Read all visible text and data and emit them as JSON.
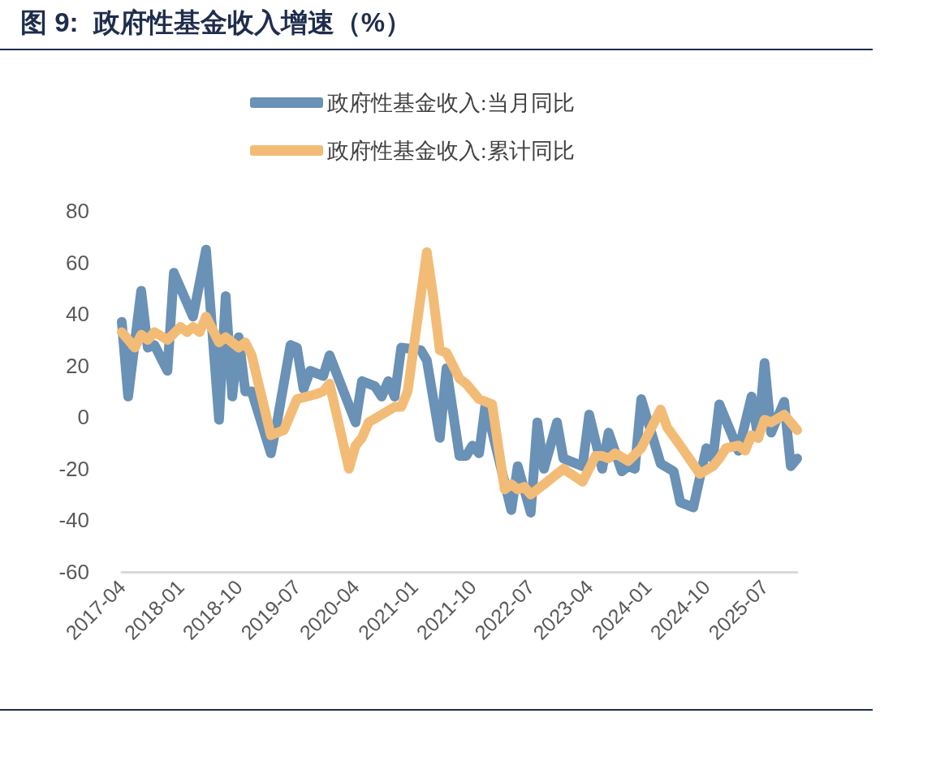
{
  "chart_data": {
    "type": "line",
    "title": "图 9:  政府性基金收入增速（%）",
    "xlim": [
      "2017-04",
      "2025-12"
    ],
    "xticks": [
      "2017-04",
      "2018-01",
      "2018-10",
      "2019-07",
      "2020-04",
      "2021-01",
      "2021-10",
      "2022-07",
      "2023-04",
      "2024-01",
      "2024-10",
      "2025-07"
    ],
    "ylim": [
      -60,
      80
    ],
    "yticks": [
      -60,
      -40,
      -20,
      0,
      20,
      40,
      60,
      80
    ],
    "grid": false,
    "legend": "top",
    "marker": "none",
    "line_style": "solid",
    "series": [
      {
        "name": "政府性基金收入:当月同比",
        "color": "#6a91b6",
        "x": [
          "2017-04",
          "2017-05",
          "2017-07",
          "2017-08",
          "2017-09",
          "2017-11",
          "2017-12",
          "2018-03",
          "2018-05",
          "2018-07",
          "2018-08",
          "2018-09",
          "2018-10",
          "2018-11",
          "2018-12",
          "2019-03",
          "2019-04",
          "2019-06",
          "2019-07",
          "2019-08",
          "2019-09",
          "2019-11",
          "2019-12",
          "2020-04",
          "2020-05",
          "2020-07",
          "2020-08",
          "2020-09",
          "2020-10",
          "2020-11",
          "2021-02",
          "2021-03",
          "2021-05",
          "2021-06",
          "2021-08",
          "2021-09",
          "2021-10",
          "2021-11",
          "2021-12",
          "2022-04",
          "2022-05",
          "2022-07",
          "2022-08",
          "2022-09",
          "2022-11",
          "2022-12",
          "2023-03",
          "2023-04",
          "2023-06",
          "2023-07",
          "2023-09",
          "2023-10",
          "2023-11",
          "2023-12",
          "2024-03",
          "2024-05",
          "2024-06",
          "2024-08",
          "2024-10",
          "2024-11",
          "2024-12",
          "2025-03",
          "2025-05",
          "2025-06",
          "2025-07",
          "2025-08",
          "2025-10",
          "2025-11",
          "2025-12"
        ],
        "values": [
          37,
          8,
          49,
          27,
          28,
          18,
          56,
          39,
          65,
          -1,
          47,
          8,
          31,
          10,
          10,
          -14,
          -1,
          28,
          27,
          11,
          18,
          16,
          24,
          -2,
          14,
          12,
          8,
          14,
          8,
          27,
          26,
          22,
          -8,
          19,
          -15,
          -15,
          -11,
          -14,
          5,
          -36,
          -19,
          -37,
          -2,
          -20,
          -2,
          -16,
          -19,
          1,
          -20,
          -6,
          -21,
          -19,
          -20,
          7,
          -18,
          -21,
          -33,
          -35,
          -12,
          -16,
          5,
          -13,
          8,
          -8,
          21,
          -6,
          6,
          -19,
          -16
        ]
      },
      {
        "name": "政府性基金收入:累计同比",
        "color": "#f2bc77",
        "x": [
          "2017-04",
          "2017-06",
          "2017-07",
          "2017-08",
          "2017-09",
          "2017-11",
          "2018-01",
          "2018-02",
          "2018-03",
          "2018-04",
          "2018-05",
          "2018-07",
          "2018-08",
          "2018-10",
          "2018-11",
          "2018-12",
          "2019-03",
          "2019-05",
          "2019-07",
          "2019-10",
          "2019-11",
          "2019-12",
          "2020-03",
          "2020-04",
          "2020-05",
          "2020-06",
          "2020-08",
          "2020-10",
          "2020-11",
          "2020-12",
          "2021-03",
          "2021-04",
          "2021-05",
          "2021-06",
          "2021-08",
          "2021-09",
          "2021-11",
          "2022-01",
          "2022-03",
          "2022-04",
          "2022-05",
          "2022-06",
          "2022-07",
          "2022-09",
          "2022-11",
          "2022-12",
          "2023-03",
          "2023-05",
          "2023-06",
          "2023-07",
          "2023-08",
          "2023-10",
          "2023-12",
          "2024-03",
          "2024-04",
          "2024-06",
          "2024-09",
          "2024-11",
          "2024-12",
          "2025-01",
          "2025-03",
          "2025-04",
          "2025-05",
          "2025-06",
          "2025-07",
          "2025-08",
          "2025-10",
          "2025-12"
        ],
        "values": [
          33,
          27,
          32,
          30,
          33,
          30,
          35,
          33,
          35,
          33,
          39,
          29,
          31,
          27,
          29,
          24,
          -7,
          -5,
          7,
          9,
          10,
          13,
          -20,
          -11,
          -8,
          -2,
          1,
          4,
          4,
          10,
          64,
          46,
          26,
          25,
          15,
          13,
          7,
          5,
          -28,
          -26,
          -28,
          -27,
          -30,
          -26,
          -22,
          -20,
          -25,
          -15,
          -15,
          -16,
          -14,
          -17,
          -12,
          3,
          -4,
          -11,
          -22,
          -19,
          -16,
          -12,
          -11,
          -13,
          -7,
          -8,
          -1,
          -2,
          1,
          -5
        ]
      }
    ]
  }
}
